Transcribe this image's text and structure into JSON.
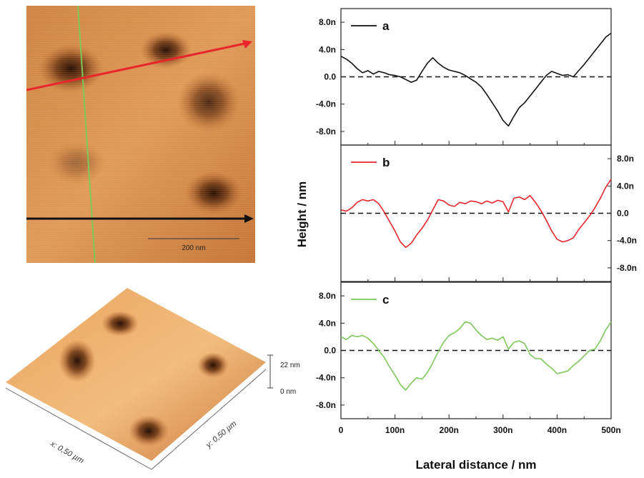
{
  "afm_image": {
    "scale_bar_label": "200 nm",
    "z_top_label": "22 nm",
    "z_bottom_label": "0 nm",
    "x_axis_label": "x: 0,50 µm",
    "y_axis_label": "y: 0,50 µm",
    "colors": {
      "dark": "#3a1a06",
      "mid": "#b5642a",
      "light": "#f6c486",
      "line_a": "#e8262b",
      "line_b": "#111111",
      "line_c": "#7cc85a"
    }
  },
  "chart_data": {
    "type": "line",
    "xlabel": "Lateral distance / nm",
    "ylabel": "Height / nm",
    "xlim": [
      0,
      500
    ],
    "x_ticks": [
      "0",
      "100n",
      "200n",
      "300n",
      "400n",
      "500n"
    ],
    "y_ticks": [
      "8.0n",
      "4.0n",
      "0.0",
      "-4.0n",
      "-8.0n"
    ],
    "ylim": [
      -10,
      10
    ],
    "series": [
      {
        "name": "a",
        "color": "#111111",
        "tick_side": "left",
        "x": [
          0,
          10,
          20,
          30,
          40,
          50,
          60,
          70,
          80,
          90,
          100,
          110,
          120,
          130,
          140,
          150,
          160,
          170,
          180,
          190,
          200,
          210,
          220,
          230,
          240,
          250,
          260,
          270,
          280,
          290,
          300,
          310,
          320,
          330,
          340,
          350,
          360,
          370,
          380,
          390,
          400,
          410,
          420,
          430,
          440,
          450,
          460,
          470,
          480,
          490,
          500
        ],
        "y": [
          3.0,
          2.6,
          2.0,
          1.2,
          0.6,
          0.9,
          0.4,
          0.8,
          0.6,
          0.3,
          0.2,
          0.0,
          -0.4,
          -0.8,
          -0.5,
          0.8,
          2.0,
          2.8,
          2.0,
          1.4,
          1.0,
          0.8,
          0.6,
          0.2,
          -0.3,
          -0.8,
          -1.5,
          -2.6,
          -3.8,
          -5.0,
          -6.4,
          -7.2,
          -5.8,
          -4.5,
          -3.8,
          -2.8,
          -1.8,
          -0.8,
          0.2,
          0.8,
          0.5,
          0.2,
          0.3,
          0.0,
          0.9,
          1.8,
          2.8,
          3.8,
          4.8,
          5.8,
          6.4
        ]
      },
      {
        "name": "b",
        "color": "#e8262b",
        "tick_side": "right",
        "x": [
          0,
          10,
          20,
          30,
          40,
          50,
          60,
          70,
          80,
          90,
          100,
          110,
          120,
          130,
          140,
          150,
          160,
          170,
          180,
          190,
          200,
          210,
          220,
          230,
          240,
          250,
          260,
          270,
          280,
          290,
          300,
          310,
          320,
          330,
          340,
          350,
          360,
          370,
          380,
          390,
          400,
          410,
          420,
          430,
          440,
          450,
          460,
          470,
          480,
          490,
          500
        ],
        "y": [
          0.5,
          0.3,
          0.8,
          1.6,
          2.0,
          1.8,
          2.0,
          1.4,
          0.2,
          -1.2,
          -2.6,
          -4.2,
          -5.0,
          -4.4,
          -3.2,
          -2.2,
          -1.0,
          0.5,
          2.0,
          1.8,
          1.2,
          1.0,
          1.6,
          1.4,
          1.8,
          1.7,
          1.4,
          1.8,
          1.5,
          1.9,
          1.7,
          0.2,
          2.2,
          2.4,
          2.0,
          2.6,
          1.6,
          0.4,
          -1.0,
          -2.6,
          -3.8,
          -4.2,
          -4.0,
          -3.6,
          -2.4,
          -1.4,
          -0.4,
          0.8,
          2.2,
          3.8,
          5.0
        ]
      },
      {
        "name": "c",
        "color": "#7cc85a",
        "tick_side": "left",
        "x": [
          0,
          10,
          20,
          30,
          40,
          50,
          60,
          70,
          80,
          90,
          100,
          110,
          120,
          130,
          140,
          150,
          160,
          170,
          180,
          190,
          200,
          210,
          220,
          230,
          240,
          250,
          260,
          270,
          280,
          290,
          300,
          310,
          320,
          330,
          340,
          350,
          360,
          370,
          380,
          390,
          400,
          410,
          420,
          430,
          440,
          450,
          460,
          470,
          480,
          490,
          500
        ],
        "y": [
          2.0,
          1.6,
          2.2,
          2.0,
          2.2,
          1.8,
          1.0,
          0.0,
          -1.0,
          -2.4,
          -3.6,
          -5.0,
          -5.8,
          -4.8,
          -4.0,
          -4.2,
          -3.2,
          -1.8,
          -0.2,
          1.2,
          2.2,
          2.6,
          3.2,
          4.2,
          4.0,
          3.0,
          2.2,
          1.6,
          1.8,
          1.5,
          2.0,
          0.2,
          1.2,
          1.4,
          1.0,
          -0.6,
          -1.2,
          -1.2,
          -2.0,
          -2.6,
          -3.4,
          -3.2,
          -3.0,
          -2.2,
          -1.6,
          -0.8,
          0.0,
          0.2,
          1.4,
          3.0,
          4.2
        ]
      }
    ]
  }
}
